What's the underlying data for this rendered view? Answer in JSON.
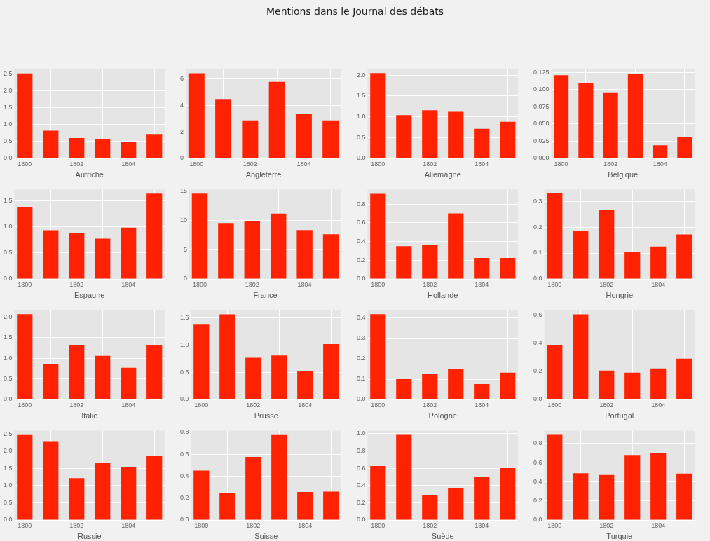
{
  "chart_data": [
    {
      "type": "other",
      "title": "Mentions dans le Journal des débats"
    },
    {
      "type": "bar",
      "xlabel": "Autriche",
      "x": [
        1800,
        1801,
        1802,
        1803,
        1804,
        1805
      ],
      "values": [
        2.52,
        0.82,
        0.6,
        0.58,
        0.5,
        0.72
      ],
      "color": "#ff2200",
      "xlim": [
        1799.6,
        1805.4
      ],
      "xticks": [
        1800,
        1802,
        1804
      ],
      "ylim": [
        0,
        2.65
      ],
      "yticks": [
        {
          "value": 0,
          "label": "0.0"
        },
        {
          "value": 0.5,
          "label": "0.5"
        },
        {
          "value": 1,
          "label": "1.0"
        },
        {
          "value": 1.5,
          "label": "1.5"
        },
        {
          "value": 2,
          "label": "2.0"
        },
        {
          "value": 2.5,
          "label": "2.5"
        }
      ],
      "grid": true
    },
    {
      "type": "bar",
      "xlabel": "Angleterre",
      "x": [
        1800,
        1801,
        1802,
        1803,
        1804,
        1805
      ],
      "values": [
        6.45,
        4.5,
        2.88,
        5.8,
        3.37,
        2.88
      ],
      "color": "#ff2200",
      "xlim": [
        1799.6,
        1805.4
      ],
      "xticks": [
        1800,
        1802,
        1804
      ],
      "ylim": [
        0,
        6.77
      ],
      "yticks": [
        0,
        2,
        4,
        6
      ],
      "grid": true
    },
    {
      "type": "bar",
      "xlabel": "Allemagne",
      "x": [
        1800,
        1801,
        1802,
        1803,
        1804,
        1805
      ],
      "values": [
        2.05,
        1.04,
        1.16,
        1.12,
        0.71,
        0.88
      ],
      "color": "#ff2200",
      "xlim": [
        1799.6,
        1805.4
      ],
      "xticks": [
        1800,
        1802,
        1804
      ],
      "ylim": [
        0,
        2.15
      ],
      "yticks": [
        {
          "value": 0,
          "label": "0.0"
        },
        {
          "value": 0.5,
          "label": "0.5"
        },
        {
          "value": 1,
          "label": "1.0"
        },
        {
          "value": 1.5,
          "label": "1.5"
        },
        {
          "value": 2,
          "label": "2.0"
        }
      ],
      "grid": true
    },
    {
      "type": "bar",
      "xlabel": "Belgique",
      "x": [
        1800,
        1801,
        1802,
        1803,
        1804,
        1805
      ],
      "values": [
        0.121,
        0.11,
        0.096,
        0.123,
        0.019,
        0.031
      ],
      "color": "#ff2200",
      "xlim": [
        1799.6,
        1805.4
      ],
      "xticks": [
        1800,
        1802,
        1804
      ],
      "ylim": [
        0,
        0.13
      ],
      "yticks": [
        {
          "value": 0,
          "label": "0.000"
        },
        {
          "value": 0.025,
          "label": "0.025"
        },
        {
          "value": 0.05,
          "label": "0.050"
        },
        {
          "value": 0.075,
          "label": "0.075"
        },
        {
          "value": 0.1,
          "label": "0.100"
        },
        {
          "value": 0.125,
          "label": "0.125"
        }
      ],
      "grid": true
    },
    {
      "type": "bar",
      "xlabel": "Espagne",
      "x": [
        1800,
        1801,
        1802,
        1803,
        1804,
        1805
      ],
      "values": [
        1.38,
        0.93,
        0.87,
        0.77,
        0.98,
        1.63
      ],
      "color": "#ff2200",
      "xlim": [
        1799.6,
        1805.4
      ],
      "xticks": [
        1800,
        1802,
        1804
      ],
      "ylim": [
        0,
        1.71
      ],
      "yticks": [
        {
          "value": 0,
          "label": "0.0"
        },
        {
          "value": 0.5,
          "label": "0.5"
        },
        {
          "value": 1,
          "label": "1.0"
        },
        {
          "value": 1.5,
          "label": "1.5"
        }
      ],
      "grid": true
    },
    {
      "type": "bar",
      "xlabel": "France",
      "x": [
        1800,
        1801,
        1802,
        1803,
        1804,
        1805
      ],
      "values": [
        14.5,
        9.5,
        9.9,
        11.1,
        8.3,
        7.6
      ],
      "color": "#ff2200",
      "xlim": [
        1799.6,
        1805.4
      ],
      "xticks": [
        1800,
        1802,
        1804
      ],
      "ylim": [
        0,
        15.2
      ],
      "yticks": [
        0,
        5,
        10,
        15
      ],
      "grid": true
    },
    {
      "type": "bar",
      "xlabel": "Hollande",
      "x": [
        1800,
        1801,
        1802,
        1803,
        1804,
        1805
      ],
      "values": [
        0.91,
        0.35,
        0.36,
        0.7,
        0.225,
        0.225
      ],
      "color": "#ff2200",
      "xlim": [
        1799.6,
        1805.4
      ],
      "xticks": [
        1800,
        1802,
        1804
      ],
      "ylim": [
        0,
        0.955
      ],
      "yticks": [
        {
          "value": 0,
          "label": "0.0"
        },
        0.2,
        0.4,
        0.6,
        0.8
      ],
      "grid": true
    },
    {
      "type": "bar",
      "xlabel": "Hongrie",
      "x": [
        1800,
        1801,
        1802,
        1803,
        1804,
        1805
      ],
      "values": [
        0.33,
        0.185,
        0.265,
        0.105,
        0.125,
        0.172
      ],
      "color": "#ff2200",
      "xlim": [
        1799.6,
        1805.4
      ],
      "xticks": [
        1800,
        1802,
        1804
      ],
      "ylim": [
        0,
        0.345
      ],
      "yticks": [
        {
          "value": 0,
          "label": "0.0"
        },
        0.1,
        0.2,
        0.3
      ],
      "grid": true
    },
    {
      "type": "bar",
      "xlabel": "Italie",
      "x": [
        1800,
        1801,
        1802,
        1803,
        1804,
        1805
      ],
      "values": [
        2.07,
        0.86,
        1.32,
        1.06,
        0.77,
        1.31
      ],
      "color": "#ff2200",
      "xlim": [
        1799.6,
        1805.4
      ],
      "xticks": [
        1800,
        1802,
        1804
      ],
      "ylim": [
        0,
        2.17
      ],
      "yticks": [
        {
          "value": 0,
          "label": "0.0"
        },
        {
          "value": 0.5,
          "label": "0.5"
        },
        {
          "value": 1,
          "label": "1.0"
        },
        {
          "value": 1.5,
          "label": "1.5"
        },
        {
          "value": 2,
          "label": "2.0"
        }
      ],
      "grid": true
    },
    {
      "type": "bar",
      "xlabel": "Prusse",
      "x": [
        1800,
        1801,
        1802,
        1803,
        1804,
        1805
      ],
      "values": [
        1.38,
        1.57,
        0.77,
        0.81,
        0.52,
        1.02
      ],
      "color": "#ff2200",
      "xlim": [
        1799.6,
        1805.4
      ],
      "xticks": [
        1800,
        1802,
        1804
      ],
      "ylim": [
        0,
        1.65
      ],
      "yticks": [
        {
          "value": 0,
          "label": "0.0"
        },
        {
          "value": 0.5,
          "label": "0.5"
        },
        {
          "value": 1,
          "label": "1.0"
        },
        {
          "value": 1.5,
          "label": "1.5"
        }
      ],
      "grid": true
    },
    {
      "type": "bar",
      "xlabel": "Pologne",
      "x": [
        1800,
        1801,
        1802,
        1803,
        1804,
        1805
      ],
      "values": [
        0.42,
        0.1,
        0.128,
        0.148,
        0.076,
        0.132
      ],
      "color": "#ff2200",
      "xlim": [
        1799.6,
        1805.4
      ],
      "xticks": [
        1800,
        1802,
        1804
      ],
      "ylim": [
        0,
        0.44
      ],
      "yticks": [
        {
          "value": 0,
          "label": "0.0"
        },
        0.1,
        0.2,
        0.3,
        0.4
      ],
      "grid": true
    },
    {
      "type": "bar",
      "xlabel": "Portugal",
      "x": [
        1800,
        1801,
        1802,
        1803,
        1804,
        1805
      ],
      "values": [
        0.385,
        0.605,
        0.205,
        0.19,
        0.22,
        0.29
      ],
      "color": "#ff2200",
      "xlim": [
        1799.6,
        1805.4
      ],
      "xticks": [
        1800,
        1802,
        1804
      ],
      "ylim": [
        0,
        0.635
      ],
      "yticks": [
        {
          "value": 0,
          "label": "0.0"
        },
        0.2,
        0.4,
        0.6
      ],
      "grid": true
    },
    {
      "type": "bar",
      "xlabel": "Russie",
      "x": [
        1800,
        1801,
        1802,
        1803,
        1804,
        1805
      ],
      "values": [
        2.47,
        2.27,
        1.22,
        1.66,
        1.55,
        1.87
      ],
      "color": "#ff2200",
      "xlim": [
        1799.6,
        1805.4
      ],
      "xticks": [
        1800,
        1802,
        1804
      ],
      "ylim": [
        0,
        2.6
      ],
      "yticks": [
        {
          "value": 0,
          "label": "0.0"
        },
        {
          "value": 0.5,
          "label": "0.5"
        },
        {
          "value": 1,
          "label": "1.0"
        },
        {
          "value": 1.5,
          "label": "1.5"
        },
        {
          "value": 2,
          "label": "2.0"
        },
        {
          "value": 2.5,
          "label": "2.5"
        }
      ],
      "grid": true
    },
    {
      "type": "bar",
      "xlabel": "Suisse",
      "x": [
        1800,
        1801,
        1802,
        1803,
        1804,
        1805
      ],
      "values": [
        0.45,
        0.245,
        0.575,
        0.775,
        0.255,
        0.258
      ],
      "color": "#ff2200",
      "xlim": [
        1799.6,
        1805.4
      ],
      "xticks": [
        1800,
        1802,
        1804
      ],
      "ylim": [
        0,
        0.815
      ],
      "yticks": [
        {
          "value": 0,
          "label": "0.0"
        },
        0.2,
        0.4,
        0.6,
        0.8
      ],
      "grid": true
    },
    {
      "type": "bar",
      "xlabel": "Suède",
      "x": [
        1800,
        1801,
        1802,
        1803,
        1804,
        1805
      ],
      "values": [
        0.625,
        0.985,
        0.29,
        0.365,
        0.495,
        0.6
      ],
      "color": "#ff2200",
      "xlim": [
        1799.6,
        1805.4
      ],
      "xticks": [
        1800,
        1802,
        1804
      ],
      "ylim": [
        0,
        1.035
      ],
      "yticks": [
        {
          "value": 0,
          "label": "0.0"
        },
        0.2,
        0.4,
        0.6,
        0.8,
        {
          "value": 1,
          "label": "1.0"
        }
      ],
      "grid": true
    },
    {
      "type": "bar",
      "xlabel": "Turquie",
      "x": [
        1800,
        1801,
        1802,
        1803,
        1804,
        1805
      ],
      "values": [
        0.89,
        0.49,
        0.47,
        0.68,
        0.7,
        0.485
      ],
      "color": "#ff2200",
      "xlim": [
        1799.6,
        1805.4
      ],
      "xticks": [
        1800,
        1802,
        1804
      ],
      "ylim": [
        0,
        0.935
      ],
      "yticks": [
        {
          "value": 0,
          "label": "0.0"
        },
        0.2,
        0.4,
        0.6,
        0.8
      ],
      "grid": true
    }
  ]
}
